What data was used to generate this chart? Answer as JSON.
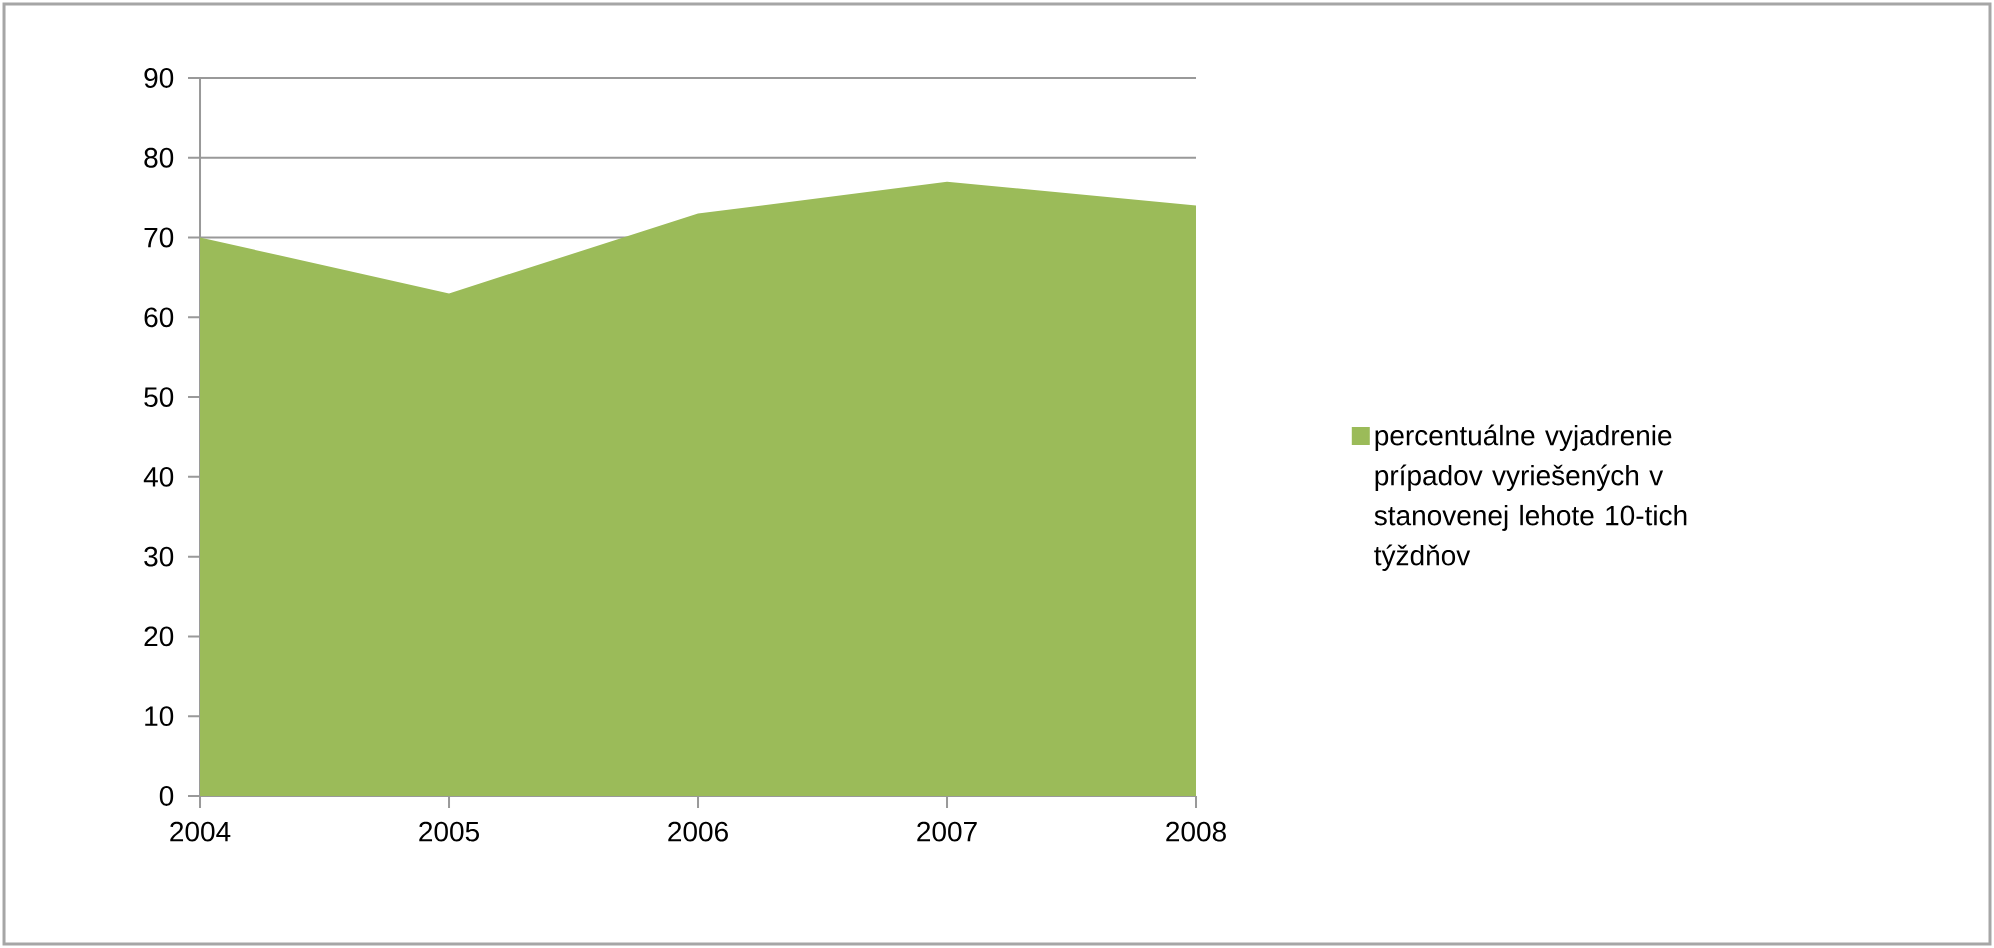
{
  "chart_data": {
    "type": "area",
    "categories": [
      "2004",
      "2005",
      "2006",
      "2007",
      "2008"
    ],
    "series": [
      {
        "name": "percentuálne vyjadrenie prípadov vyriešených v stanovenej lehote 10-tich týždňov",
        "color": "#9bbb59",
        "values": [
          70,
          63,
          73,
          77,
          74
        ]
      }
    ],
    "ylim": [
      0,
      90
    ],
    "yticks": [
      0,
      10,
      20,
      30,
      40,
      50,
      60,
      70,
      80,
      90
    ],
    "grid": "y",
    "legend": "right"
  }
}
